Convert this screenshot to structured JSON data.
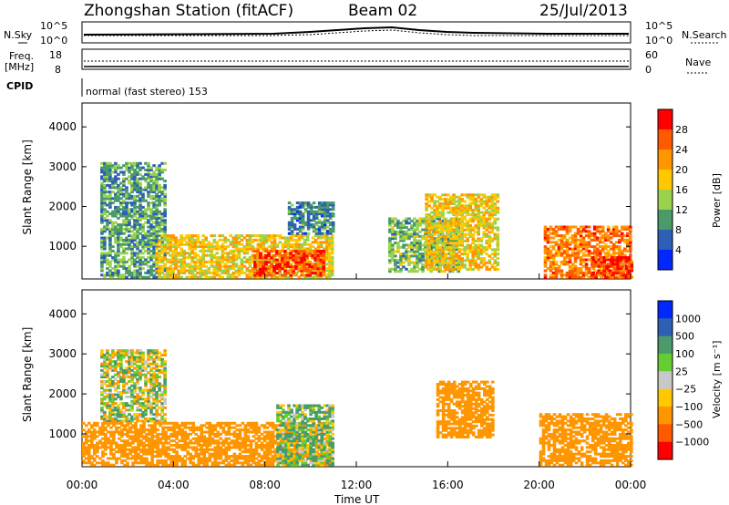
{
  "header": {
    "station": "Zhongshan Station (fitACF)",
    "beam": "Beam 02",
    "date": "25/Jul/2013"
  },
  "strips": {
    "nsky_label": "N.Sky",
    "nsearch_label": "N.Search",
    "freq_label_1": "Freq.",
    "freq_label_2": "[MHz]",
    "nave_label": "Nave",
    "cpid_label": "CPID",
    "cpid_text": "normal (fast stereo) 153",
    "noise_left_ticks": [
      "10^5",
      "10^0"
    ],
    "noise_right_ticks": [
      "10^5",
      "10^0"
    ],
    "freq_ticks": [
      "18",
      "8"
    ],
    "nave_ticks": [
      "60",
      "0"
    ]
  },
  "chart_data": [
    {
      "type": "heatmap",
      "name": "power",
      "ylabel": "Slant Range [km]",
      "xlabel": "",
      "x_ticks": [
        "00:00",
        "04:00",
        "08:00",
        "12:00",
        "16:00",
        "20:00",
        "00:00"
      ],
      "y_ticks": [
        1000,
        2000,
        3000,
        4000
      ],
      "ylim": [
        180,
        4600
      ],
      "colorbar": {
        "label": "Power [dB]",
        "ticks": [
          "28",
          "24",
          "20",
          "16",
          "12",
          "8",
          "4"
        ],
        "colors": [
          "#ff0000",
          "#ff5a00",
          "#ff9600",
          "#ffc800",
          "#9ad24e",
          "#4a9a6a",
          "#2d5fb4",
          "#0028ff"
        ]
      },
      "regions": [
        {
          "t0": 0.8,
          "t1": 3.6,
          "r0": 200,
          "r1": 3100,
          "value": 10
        },
        {
          "t0": 3.2,
          "t1": 10.9,
          "r0": 200,
          "r1": 1300,
          "value": 18
        },
        {
          "t0": 7.5,
          "t1": 10.6,
          "r0": 250,
          "r1": 900,
          "value": 27
        },
        {
          "t0": 9.0,
          "t1": 11.0,
          "r0": 1300,
          "r1": 2100,
          "value": 8
        },
        {
          "t0": 13.4,
          "t1": 16.5,
          "r0": 350,
          "r1": 1700,
          "value": 12
        },
        {
          "t0": 15.0,
          "t1": 18.2,
          "r0": 400,
          "r1": 2300,
          "value": 18
        },
        {
          "t0": 20.2,
          "t1": 24.0,
          "r0": 200,
          "r1": 1500,
          "value": 24
        },
        {
          "t0": 22.3,
          "t1": 24.0,
          "r0": 200,
          "r1": 700,
          "value": 28
        }
      ]
    },
    {
      "type": "heatmap",
      "name": "velocity",
      "ylabel": "Slant Range [km]",
      "xlabel": "Time UT",
      "x_ticks": [
        "00:00",
        "04:00",
        "08:00",
        "12:00",
        "16:00",
        "20:00",
        "00:00"
      ],
      "y_ticks": [
        1000,
        2000,
        3000,
        4000
      ],
      "ylim": [
        180,
        4600
      ],
      "colorbar": {
        "label": "Velocity [m s⁻¹]",
        "ticks": [
          "1000",
          "500",
          "100",
          "25",
          "−25",
          "−100",
          "−500",
          "−1000"
        ],
        "colors": [
          "#0028ff",
          "#2d5fb4",
          "#4a9a6a",
          "#66cc33",
          "#c8c8c8",
          "#ffc800",
          "#ff9600",
          "#ff5a00",
          "#ff0000"
        ]
      },
      "regions": [
        {
          "t0": 0.8,
          "t1": 3.6,
          "r0": 1300,
          "r1": 3100,
          "value": 0
        },
        {
          "t0": 0.0,
          "t1": 10.9,
          "r0": 200,
          "r1": 1300,
          "value": -300
        },
        {
          "t0": 8.5,
          "t1": 10.9,
          "r0": 200,
          "r1": 1700,
          "value": 100
        },
        {
          "t0": 15.5,
          "t1": 18.0,
          "r0": 900,
          "r1": 2300,
          "value": -300
        },
        {
          "t0": 20.0,
          "t1": 24.0,
          "r0": 200,
          "r1": 1500,
          "value": -300
        }
      ]
    }
  ]
}
